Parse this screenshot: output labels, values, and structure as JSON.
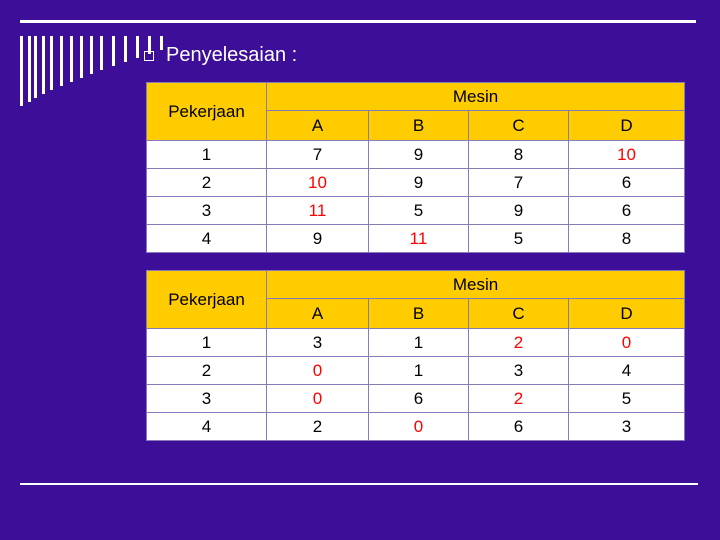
{
  "heading": {
    "bullet_icon": "hollow-square-bullet",
    "title": "Penyelesaian :"
  },
  "colors": {
    "background": "#3d0f99",
    "header": "#ffcc00",
    "highlight": "#ff0000"
  },
  "tables": [
    {
      "row_header": "Pekerjaan",
      "group_header": "Mesin",
      "columns": [
        "A",
        "B",
        "C",
        "D"
      ],
      "rows": [
        {
          "label": "1",
          "values": [
            "7",
            "9",
            "8",
            "10"
          ],
          "highlight": [
            false,
            false,
            false,
            true
          ]
        },
        {
          "label": "2",
          "values": [
            "10",
            "9",
            "7",
            "6"
          ],
          "highlight": [
            true,
            false,
            false,
            false
          ]
        },
        {
          "label": "3",
          "values": [
            "11",
            "5",
            "9",
            "6"
          ],
          "highlight": [
            true,
            false,
            false,
            false
          ]
        },
        {
          "label": "4",
          "values": [
            "9",
            "11",
            "5",
            "8"
          ],
          "highlight": [
            false,
            true,
            false,
            false
          ]
        }
      ]
    },
    {
      "row_header": "Pekerjaan",
      "group_header": "Mesin",
      "columns": [
        "A",
        "B",
        "C",
        "D"
      ],
      "rows": [
        {
          "label": "1",
          "values": [
            "3",
            "1",
            "2",
            "0"
          ],
          "highlight": [
            false,
            false,
            true,
            true
          ]
        },
        {
          "label": "2",
          "values": [
            "0",
            "1",
            "3",
            "4"
          ],
          "highlight": [
            true,
            false,
            false,
            false
          ]
        },
        {
          "label": "3",
          "values": [
            "0",
            "6",
            "2",
            "5"
          ],
          "highlight": [
            true,
            false,
            true,
            false
          ]
        },
        {
          "label": "4",
          "values": [
            "2",
            "0",
            "6",
            "3"
          ],
          "highlight": [
            false,
            true,
            false,
            false
          ]
        }
      ]
    }
  ]
}
